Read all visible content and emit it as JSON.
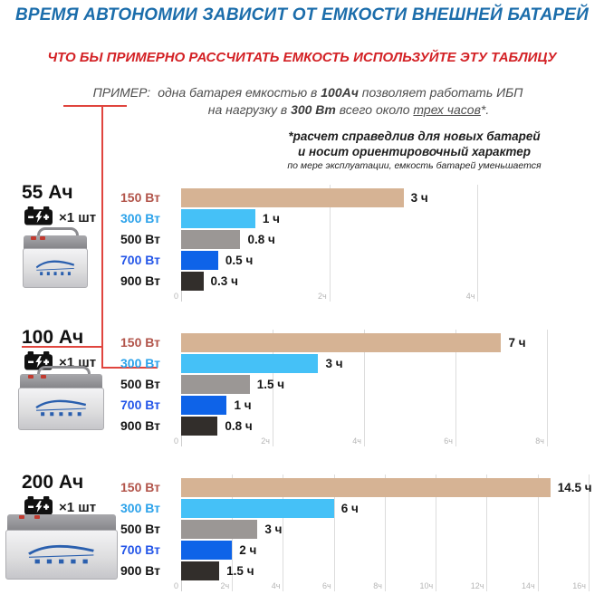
{
  "header": {
    "title": "ВРЕМЯ АВТОНОМИИ ЗАВИСИТ ОТ ЕМКОСТИ ВНЕШНЕЙ БАТАРЕЙ",
    "subtitle": "ЧТО БЫ ПРИМЕРНО РАССЧИТАТЬ ЕМКОСТЬ ИСПОЛЬЗУЙТЕ ЭТУ ТАБЛИЦУ",
    "example": {
      "label": "ПРИМЕР:",
      "line1_pre": "одна батарея емкостью в ",
      "line1_bold": "100Ач",
      "line1_post": " позволяет работать ИБП",
      "line2_pre": "на нагрузку в ",
      "line2_bold": "300 Вт",
      "line2_mid": " всего около ",
      "line2_underline": "трех часов",
      "line2_post": "*."
    },
    "note_line1": "*расчет справедлив для новых батарей",
    "note_line2": "и носит ориентировочный характер",
    "note_line3": "по мере эксплуатации, емкость батарей уменьшается"
  },
  "colors": {
    "title_blue": "#1b6dab",
    "subtitle_red": "#d32125",
    "connector_red": "#e0453e",
    "bar_colors": [
      "#d6b394",
      "#45c1f7",
      "#9b9795",
      "#0e63e8",
      "#322e2b"
    ],
    "label_colors": [
      "#b2544a",
      "#2ba2ea",
      "#141414",
      "#2456e8",
      "#141414"
    ],
    "axis_gray": "#b5b5b5",
    "grid_gray": "#dcdcdc"
  },
  "chart_data": [
    {
      "type": "bar",
      "title": "55 Ач",
      "quantity": "×1 шт",
      "categories": [
        "150 Вт",
        "300 Вт",
        "500 Вт",
        "700 Вт",
        "900 Вт"
      ],
      "values": [
        3,
        1,
        0.8,
        0.5,
        0.3
      ],
      "value_labels": [
        "3 ч",
        "1 ч",
        "0.8 ч",
        "0.5 ч",
        "0.3 ч"
      ],
      "xlabel": "",
      "ylabel": "",
      "xlim": [
        0,
        4.3
      ],
      "ticks": [
        {
          "v": 0,
          "label": "0"
        },
        {
          "v": 2,
          "label": "2ч"
        },
        {
          "v": 4,
          "label": "4ч"
        }
      ]
    },
    {
      "type": "bar",
      "title": "100 Ач",
      "quantity": "×1 шт",
      "categories": [
        "150 Вт",
        "300 Вт",
        "500 Вт",
        "700 Вт",
        "900 Вт"
      ],
      "values": [
        7,
        3,
        1.5,
        1,
        0.8
      ],
      "value_labels": [
        "7 ч",
        "3 ч",
        "1.5 ч",
        "1 ч",
        "0.8 ч"
      ],
      "xlabel": "",
      "ylabel": "",
      "xlim": [
        0,
        8.1
      ],
      "ticks": [
        {
          "v": 0,
          "label": "0"
        },
        {
          "v": 2,
          "label": "2ч"
        },
        {
          "v": 4,
          "label": "4ч"
        },
        {
          "v": 6,
          "label": "6ч"
        },
        {
          "v": 8,
          "label": "8ч"
        }
      ]
    },
    {
      "type": "bar",
      "title": "200 Ач",
      "quantity": "×1 шт",
      "categories": [
        "150 Вт",
        "300 Вт",
        "500 Вт",
        "700 Вт",
        "900 Вт"
      ],
      "values": [
        14.5,
        6,
        3,
        2,
        1.5
      ],
      "value_labels": [
        "14.5 ч",
        "6 ч",
        "3 ч",
        "2 ч",
        "1.5 ч"
      ],
      "xlabel": "",
      "ylabel": "",
      "xlim": [
        0,
        16.25
      ],
      "ticks": [
        {
          "v": 0,
          "label": "0"
        },
        {
          "v": 2,
          "label": "2ч"
        },
        {
          "v": 4,
          "label": "4ч"
        },
        {
          "v": 6,
          "label": "6ч"
        },
        {
          "v": 8,
          "label": "8ч"
        },
        {
          "v": 10,
          "label": "10ч"
        },
        {
          "v": 12,
          "label": "12ч"
        },
        {
          "v": 14,
          "label": "14ч"
        },
        {
          "v": 16,
          "label": "16ч"
        }
      ]
    }
  ]
}
